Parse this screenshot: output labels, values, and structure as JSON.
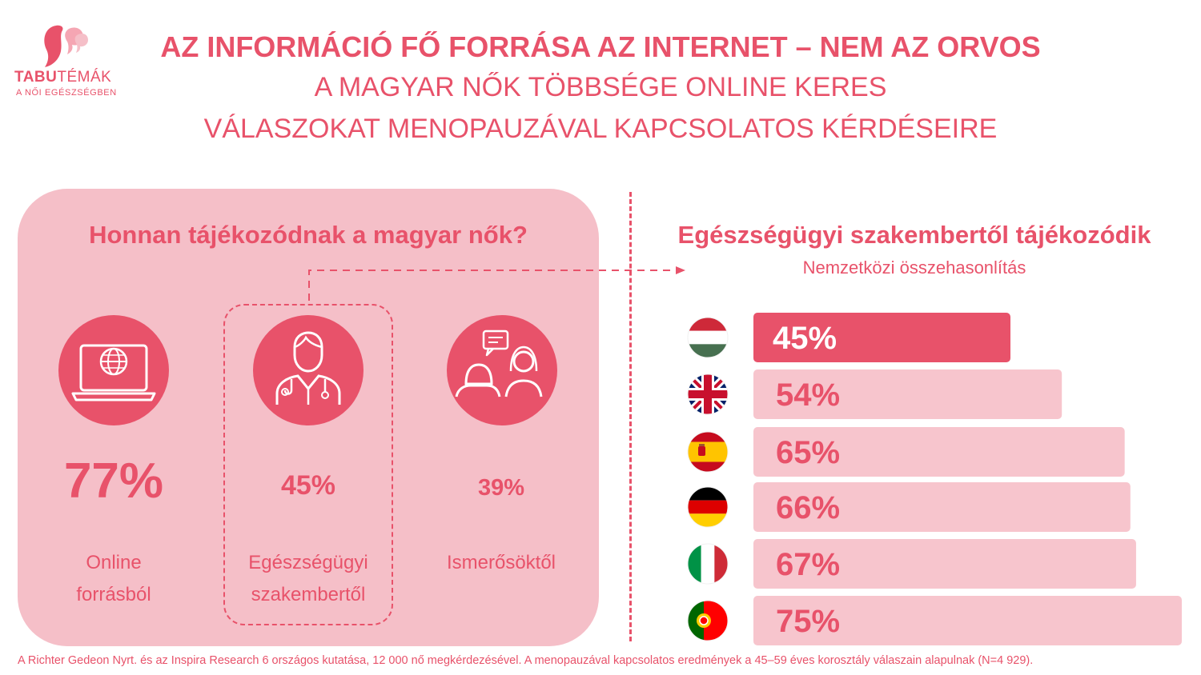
{
  "logo": {
    "brand_bold": "TABU",
    "brand_light": "TÉMÁK",
    "tagline": "A NŐI EGÉSZSÉGBEN"
  },
  "title": {
    "main": "AZ INFORMÁCIÓ FŐ FORRÁSA AZ INTERNET – NEM AZ ORVOS",
    "sub_line1": "A MAGYAR NŐK TÖBBSÉGE ONLINE KERES",
    "sub_line2": "VÁLASZOKAT MENOPAUZÁVAL KAPCSOLATOS KÉRDÉSEIRE"
  },
  "sources": {
    "heading": "Honnan tájékozódnak a magyar nők?",
    "items": [
      {
        "icon": "laptop-globe-icon",
        "pct": "77%",
        "label_line1": "Online",
        "label_line2": "forrásból"
      },
      {
        "icon": "doctor-icon",
        "pct": "45%",
        "label_line1": "Egészségügyi",
        "label_line2": "szakembertől"
      },
      {
        "icon": "conversation-icon",
        "pct": "39%",
        "label_line1": "Ismerősöktől",
        "label_line2": ""
      }
    ]
  },
  "comparison": {
    "heading": "Egészségügyi szakembertől tájékozódik",
    "subheading": "Nemzetközi összehasonlítás"
  },
  "colors": {
    "accent": "#e8526a",
    "panel": "#f5bfc8",
    "bar_light": "#f7c5cd"
  },
  "chart_data": {
    "type": "bar",
    "orientation": "horizontal",
    "categories": [
      "hungary-flag-icon",
      "uk-flag-icon",
      "spain-flag-icon",
      "germany-flag-icon",
      "italy-flag-icon",
      "portugal-flag-icon"
    ],
    "values": [
      45,
      54,
      65,
      66,
      67,
      75
    ],
    "data_labels": [
      "45%",
      "54%",
      "65%",
      "66%",
      "67%",
      "75%"
    ],
    "highlight_index": 0,
    "xlim": [
      0,
      75
    ],
    "grid": false
  },
  "footnote": "A Richter Gedeon Nyrt. és az Inspira Research 6 országos kutatása, 12 000 nő megkérdezésével. A menopauzával kapcsolatos eredmények a 45–59 éves korosztály válaszain alapulnak (N=4 929)."
}
